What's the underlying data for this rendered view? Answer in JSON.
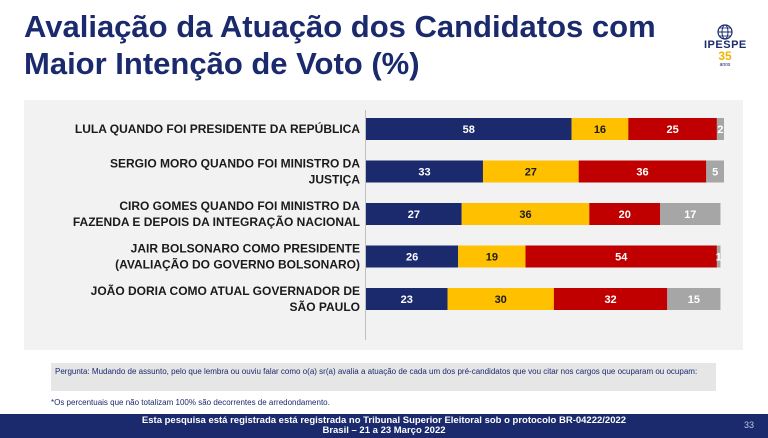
{
  "title": "Avaliação da Atuação dos Candidatos com Maior Intenção de Voto (%)",
  "logo": {
    "name": "IPESPE",
    "number": "35",
    "sub": "anos"
  },
  "chart_data": {
    "type": "bar",
    "orientation": "horizontal",
    "stacked": true,
    "categories": [
      [
        "LULA QUANDO FOI PRESIDENTE DA REPÚBLICA"
      ],
      [
        "SERGIO MORO QUANDO FOI MINISTRO DA",
        "JUSTIÇA"
      ],
      [
        "CIRO GOMES QUANDO FOI MINISTRO DA",
        "FAZENDA E DEPOIS DA INTEGRAÇÃO NACIONAL"
      ],
      [
        "JAIR BOLSONARO COMO PRESIDENTE",
        "(AVALIAÇÃO DO GOVERNO BOLSONARO)"
      ],
      [
        "JOÃO DORIA COMO ATUAL GOVERNADOR DE",
        "SÃO PAULO"
      ]
    ],
    "series": [
      {
        "values": [
          58,
          33,
          27,
          26,
          23
        ],
        "color": "#1a2a6c"
      },
      {
        "values": [
          16,
          27,
          36,
          19,
          30
        ],
        "color": "#ffc000"
      },
      {
        "values": [
          25,
          36,
          20,
          54,
          32
        ],
        "color": "#c00000"
      },
      {
        "values": [
          2,
          5,
          17,
          1,
          15
        ],
        "color": "#a6a6a6"
      }
    ],
    "xlim": [
      0,
      101
    ]
  },
  "question": "Pergunta: Mudando de assunto, pelo que lembra ou ouviu falar como o(a) sr(a) avalia a atuação de cada um dos pré-candidatos que vou citar nos cargos que ocuparam ou ocupam:",
  "note": "*Os percentuais que não totalizam 100% são decorrentes de arredondamento.",
  "footer": {
    "line1": "Esta pesquisa está registrada está registrada no Tribunal Superior Eleitoral sob o protocolo BR-04222/2022",
    "line2": "Brasil – 21 a 23 Março 2022",
    "page": "33"
  }
}
